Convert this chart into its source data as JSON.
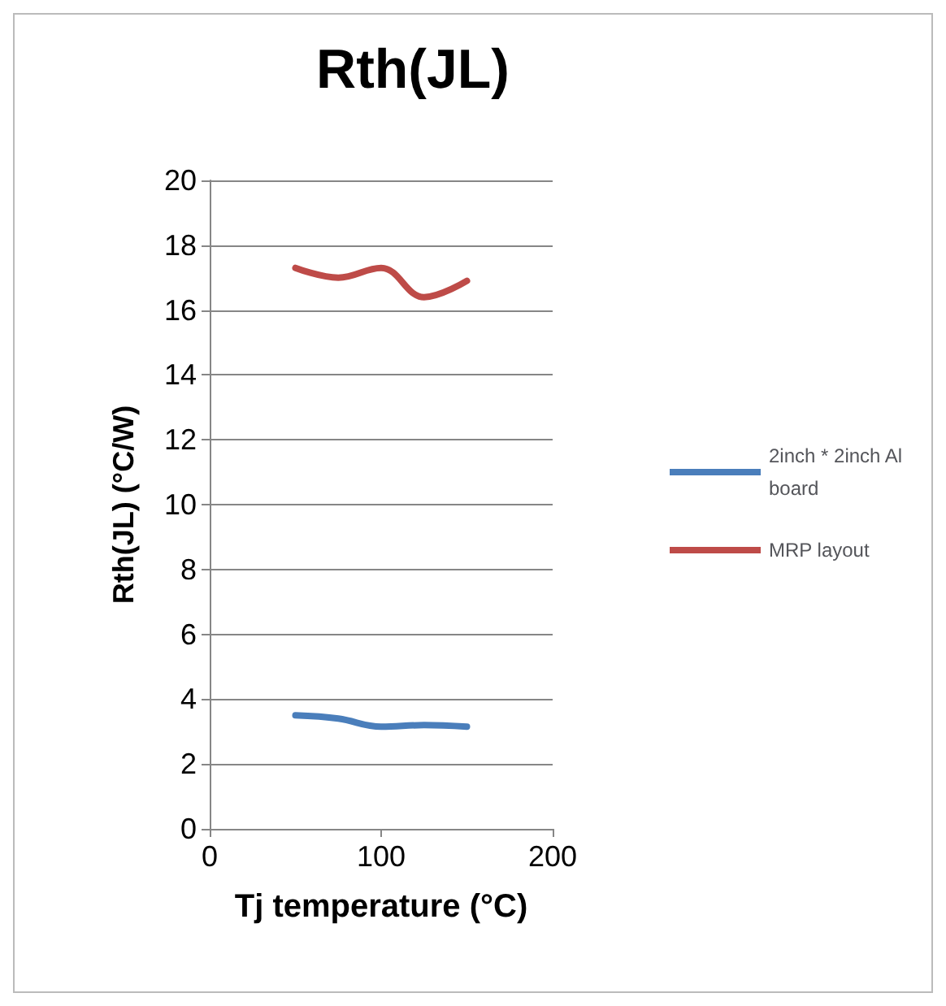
{
  "chart_data": {
    "type": "line",
    "title": "Rth(JL)",
    "xlabel": "Tj temperature (°C)",
    "ylabel": "Rth(JL) (°C/W)",
    "x": [
      50,
      75,
      100,
      125,
      150
    ],
    "series": [
      {
        "name": "2inch * 2inch Al board",
        "color": "#4a7ebb",
        "values": [
          3.5,
          3.4,
          3.15,
          3.2,
          3.15
        ]
      },
      {
        "name": "MRP layout",
        "color": "#be4b48",
        "values": [
          17.3,
          17.0,
          17.3,
          16.4,
          16.9
        ]
      }
    ],
    "xlim": [
      0,
      200
    ],
    "xticks": [
      0,
      100,
      200
    ],
    "ylim": [
      0,
      20
    ],
    "yticks": [
      0,
      2,
      4,
      6,
      8,
      10,
      12,
      14,
      16,
      18,
      20
    ],
    "grid": "y",
    "legend": "right",
    "marker": "none",
    "line_style": "solid"
  }
}
